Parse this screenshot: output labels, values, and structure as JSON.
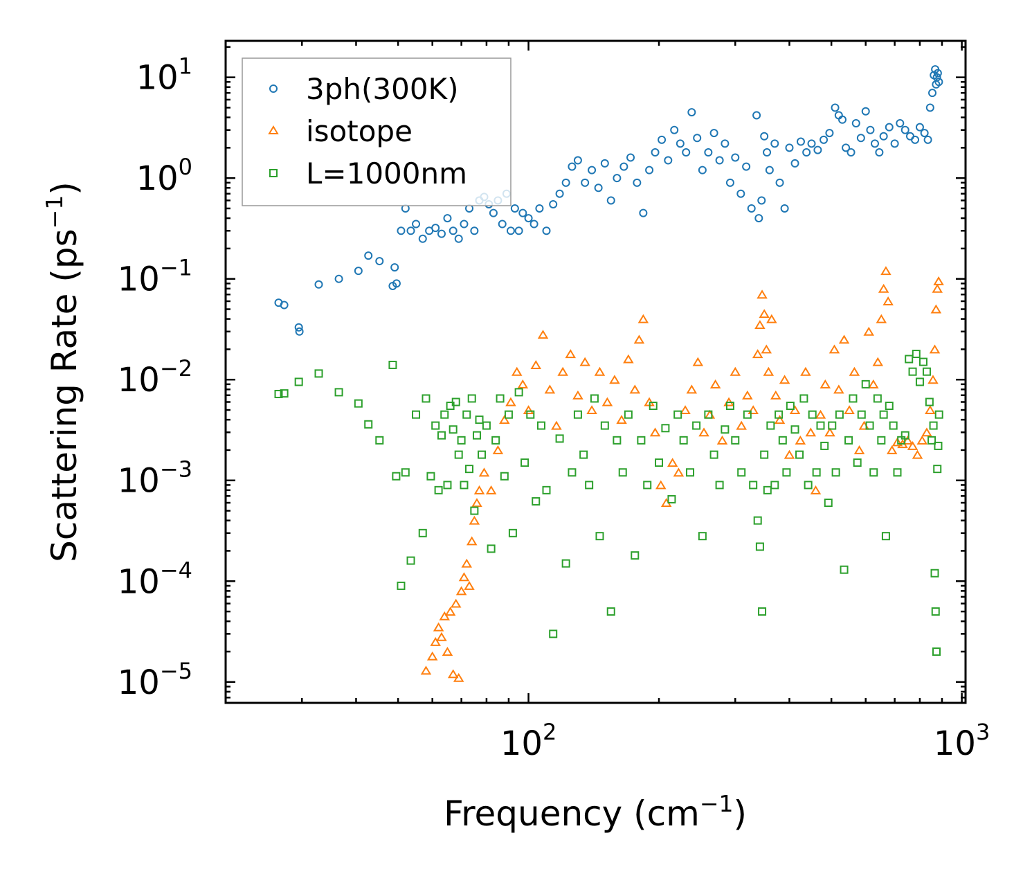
{
  "chart_data": {
    "type": "scatter",
    "title": "",
    "xlabel": "Frequency (cm",
    "xlabel_sup": "−1",
    "xlabel_end": ")",
    "ylabel": "Scattering Rate (ps",
    "ylabel_sup": "−1",
    "ylabel_end": ")",
    "xscale": "log",
    "yscale": "log",
    "xlim": [
      20,
      1020
    ],
    "ylim": [
      6.2e-06,
      23
    ],
    "x_ticks": [
      {
        "value": 100,
        "base": "10",
        "exp": "2"
      },
      {
        "value": 1000,
        "base": "10",
        "exp": "3"
      }
    ],
    "y_ticks": [
      {
        "value": 1e-05,
        "base": "10",
        "exp": "−5"
      },
      {
        "value": 0.0001,
        "base": "10",
        "exp": "−4"
      },
      {
        "value": 0.001,
        "base": "10",
        "exp": "−3"
      },
      {
        "value": 0.01,
        "base": "10",
        "exp": "−2"
      },
      {
        "value": 0.1,
        "base": "10",
        "exp": "−1"
      },
      {
        "value": 1,
        "base": "10",
        "exp": "0"
      },
      {
        "value": 10,
        "base": "10",
        "exp": "1"
      }
    ],
    "legend_position": "top-left",
    "series": [
      {
        "name": "3ph(300K)",
        "marker": "circle",
        "color": "#1f77b4",
        "x": [
          26.5,
          27.3,
          29.5,
          29.6,
          32.8,
          36.5,
          40.5,
          42.7,
          45.3,
          48.6,
          49.1,
          49.6,
          50.8,
          52,
          53.5,
          55,
          57,
          59,
          61,
          63,
          65,
          67,
          69,
          71,
          73,
          75,
          77,
          79,
          81,
          83,
          85,
          87,
          89,
          91,
          93,
          95,
          97,
          100,
          103,
          106,
          110,
          114,
          118,
          122,
          126,
          130,
          135,
          140,
          145,
          150,
          155,
          160,
          166,
          172,
          178,
          184,
          190,
          196,
          203,
          210,
          217,
          224,
          231,
          238,
          245,
          252,
          260,
          268,
          276,
          284,
          292,
          300,
          309,
          318,
          327,
          336,
          340,
          345,
          350,
          355,
          360,
          370,
          380,
          390,
          400,
          412,
          425,
          438,
          450,
          465,
          480,
          495,
          510,
          520,
          530,
          540,
          555,
          570,
          585,
          600,
          615,
          630,
          645,
          660,
          680,
          700,
          720,
          740,
          760,
          780,
          800,
          820,
          835,
          845,
          855,
          862,
          868,
          872,
          876,
          880,
          885
        ],
        "y": [
          0.058,
          0.055,
          0.033,
          0.03,
          0.088,
          0.1,
          0.12,
          0.17,
          0.15,
          0.085,
          0.13,
          0.09,
          0.3,
          0.5,
          0.3,
          0.35,
          0.25,
          0.3,
          0.32,
          0.28,
          0.4,
          0.3,
          0.25,
          0.35,
          0.5,
          0.3,
          0.6,
          0.65,
          0.55,
          0.45,
          0.6,
          0.35,
          0.7,
          0.3,
          0.5,
          0.3,
          0.45,
          0.4,
          0.35,
          0.5,
          0.3,
          0.55,
          0.7,
          0.9,
          1.3,
          1.5,
          0.9,
          1.2,
          0.8,
          1.4,
          0.6,
          1.0,
          1.3,
          1.6,
          0.9,
          0.45,
          1.2,
          1.8,
          2.4,
          1.5,
          3.0,
          2.2,
          1.8,
          4.5,
          2.5,
          1.2,
          1.8,
          2.8,
          1.5,
          2.2,
          0.9,
          1.6,
          0.7,
          1.3,
          0.5,
          4.2,
          0.4,
          0.6,
          2.6,
          1.8,
          1.2,
          2.2,
          0.9,
          0.5,
          2.0,
          1.4,
          2.3,
          1.8,
          2.2,
          1.9,
          2.4,
          2.8,
          5.0,
          4.2,
          3.8,
          2.0,
          1.8,
          3.5,
          2.5,
          4.6,
          3.0,
          2.2,
          1.8,
          2.6,
          3.2,
          2.2,
          3.5,
          3.0,
          2.6,
          2.4,
          3.2,
          2.8,
          2.4,
          5.0,
          7.0,
          10.5,
          12.0,
          8.5,
          10.0,
          11.0,
          9.0
        ]
      },
      {
        "name": "isotope",
        "marker": "triangle",
        "color": "#ff7f0e",
        "x": [
          58,
          60,
          61,
          62,
          63,
          64,
          65,
          66,
          67,
          68,
          69,
          70,
          71,
          72,
          73,
          74,
          75,
          76,
          77,
          79,
          82,
          85,
          88,
          91,
          94,
          97,
          100,
          104,
          108,
          112,
          116,
          120,
          125,
          130,
          135,
          140,
          146,
          152,
          158,
          164,
          170,
          176,
          180,
          184,
          190,
          196,
          202,
          208,
          215,
          222,
          230,
          238,
          246,
          254,
          262,
          270,
          280,
          290,
          300,
          310,
          320,
          330,
          338,
          342,
          346,
          350,
          354,
          358,
          364,
          372,
          380,
          390,
          400,
          412,
          424,
          436,
          448,
          460,
          472,
          484,
          496,
          508,
          520,
          535,
          550,
          565,
          580,
          595,
          610,
          625,
          640,
          652,
          660,
          668,
          676,
          690,
          710,
          730,
          750,
          770,
          790,
          810,
          830,
          845,
          858,
          866,
          872,
          878,
          884
        ],
        "y": [
          1.3e-05,
          1.8e-05,
          2.5e-05,
          3.5e-05,
          2.8e-05,
          4.5e-05,
          2e-05,
          5e-05,
          1.2e-05,
          6e-05,
          1.1e-05,
          8e-05,
          0.00011,
          0.00015,
          9e-05,
          0.00025,
          0.0004,
          0.0006,
          0.0008,
          0.0012,
          0.0008,
          0.002,
          0.004,
          0.006,
          0.012,
          0.009,
          0.005,
          0.014,
          0.028,
          0.008,
          0.0035,
          0.012,
          0.018,
          0.007,
          0.015,
          0.005,
          0.012,
          0.006,
          0.01,
          0.004,
          0.016,
          0.008,
          0.025,
          0.04,
          0.006,
          0.003,
          0.0009,
          0.0006,
          0.0015,
          0.0012,
          0.005,
          0.008,
          0.015,
          0.003,
          0.0045,
          0.009,
          0.0025,
          0.006,
          0.012,
          0.0035,
          0.007,
          0.005,
          0.018,
          0.035,
          0.07,
          0.045,
          0.02,
          0.012,
          0.04,
          0.007,
          0.004,
          0.01,
          0.0018,
          0.005,
          0.0025,
          0.012,
          0.003,
          0.0008,
          0.0045,
          0.009,
          0.003,
          0.02,
          0.008,
          0.025,
          0.005,
          0.012,
          0.002,
          0.0035,
          0.03,
          0.009,
          0.015,
          0.04,
          0.08,
          0.12,
          0.06,
          0.002,
          0.0024,
          0.0023,
          0.0025,
          0.0022,
          0.0018,
          0.0025,
          0.003,
          0.005,
          0.01,
          0.02,
          0.05,
          0.08,
          0.095
        ]
      },
      {
        "name": "L=1000nm",
        "marker": "square",
        "color": "#2ca02c",
        "x": [
          26.5,
          27.3,
          29.5,
          32.8,
          36.5,
          40.5,
          42.7,
          45.3,
          48.6,
          49.5,
          50.8,
          52,
          53.5,
          55,
          57,
          58,
          59.5,
          61,
          62,
          63,
          64,
          65,
          66,
          67,
          68,
          69,
          70,
          71,
          72,
          73,
          74,
          75,
          76,
          77,
          78,
          80,
          82,
          84,
          86,
          88,
          90,
          92,
          95,
          98,
          101,
          104,
          107,
          110,
          114,
          118,
          122,
          126,
          130,
          134,
          138,
          142,
          146,
          150,
          155,
          160,
          165,
          170,
          176,
          182,
          188,
          194,
          200,
          207,
          214,
          221,
          228,
          236,
          244,
          252,
          260,
          268,
          276,
          284,
          292,
          300,
          310,
          320,
          330,
          338,
          342,
          346,
          350,
          356,
          362,
          370,
          378,
          386,
          394,
          402,
          412,
          422,
          432,
          442,
          452,
          462,
          472,
          482,
          492,
          502,
          512,
          522,
          535,
          548,
          561,
          574,
          587,
          600,
          613,
          626,
          639,
          652,
          660,
          668,
          680,
          695,
          710,
          725,
          740,
          755,
          770,
          785,
          800,
          815,
          830,
          842,
          852,
          860,
          866,
          870,
          874,
          878,
          882,
          886
        ],
        "y": [
          0.0072,
          0.0073,
          0.0095,
          0.0115,
          0.0075,
          0.0058,
          0.0036,
          0.0025,
          0.014,
          0.0011,
          9e-05,
          0.0012,
          0.00016,
          0.0045,
          0.0003,
          0.0065,
          0.0011,
          0.0035,
          0.0008,
          0.0028,
          0.0045,
          0.0009,
          0.0055,
          0.0032,
          0.006,
          0.0018,
          0.0025,
          0.0009,
          0.0045,
          0.0013,
          0.0065,
          0.0005,
          0.0028,
          0.004,
          0.0018,
          0.0035,
          0.00021,
          0.0025,
          0.0065,
          0.0011,
          0.0045,
          0.0003,
          0.0075,
          0.0015,
          0.0045,
          0.00062,
          0.0035,
          0.0008,
          3e-05,
          0.0026,
          0.00015,
          0.0012,
          0.0045,
          0.0018,
          0.0009,
          0.0065,
          0.00028,
          0.0035,
          5e-05,
          0.0025,
          0.0012,
          0.0045,
          0.00018,
          0.0025,
          0.0009,
          0.0055,
          0.0015,
          0.0033,
          0.00065,
          0.0045,
          0.0025,
          0.0012,
          0.0035,
          0.00028,
          0.0045,
          0.0018,
          0.0009,
          0.0032,
          0.0055,
          0.0025,
          0.0012,
          0.0045,
          0.0009,
          0.0004,
          0.00022,
          5e-05,
          0.0018,
          0.0008,
          0.0035,
          0.0009,
          0.0045,
          0.0025,
          0.0012,
          0.0055,
          0.0032,
          0.0018,
          0.0065,
          0.0009,
          0.0045,
          0.0012,
          0.0035,
          0.0022,
          0.0006,
          0.0035,
          0.0012,
          0.0045,
          0.00013,
          0.0025,
          0.0065,
          0.0015,
          0.0045,
          0.009,
          0.0035,
          0.0012,
          0.0065,
          0.0025,
          0.0045,
          0.00028,
          0.0055,
          0.0035,
          0.0012,
          0.0025,
          0.0028,
          0.016,
          0.012,
          0.018,
          0.0095,
          0.015,
          0.012,
          0.006,
          0.0025,
          0.0035,
          0.00012,
          5e-05,
          2e-05,
          0.0013,
          0.0022,
          0.0045
        ]
      }
    ]
  }
}
